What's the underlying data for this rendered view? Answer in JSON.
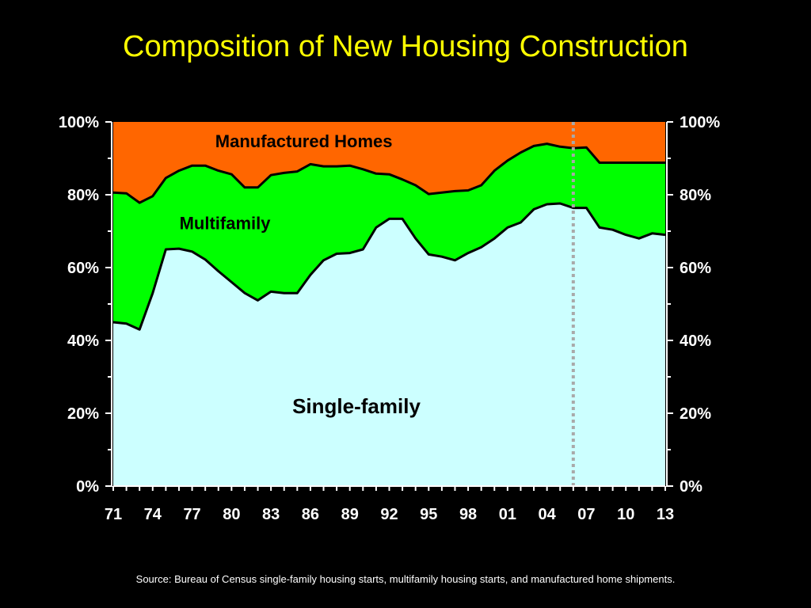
{
  "chart_data": {
    "type": "area",
    "title": "Composition of New Housing Construction",
    "source": "Source:  Bureau of Census single-family housing starts, multifamily housing starts, and manufactured home shipments.",
    "x": [
      1971,
      1972,
      1973,
      1974,
      1975,
      1976,
      1977,
      1978,
      1979,
      1980,
      1981,
      1982,
      1983,
      1984,
      1985,
      1986,
      1987,
      1988,
      1989,
      1990,
      1991,
      1992,
      1993,
      1994,
      1995,
      1996,
      1997,
      1998,
      1999,
      2000,
      2001,
      2002,
      2003,
      2004,
      2005,
      2006,
      2007,
      2008,
      2009,
      2010,
      2011,
      2012,
      2013
    ],
    "x_tick_labels": [
      "71",
      "74",
      "77",
      "80",
      "83",
      "86",
      "89",
      "92",
      "95",
      "98",
      "01",
      "04",
      "07",
      "10",
      "13"
    ],
    "x_tick_years": [
      1971,
      1974,
      1977,
      1980,
      1983,
      1986,
      1989,
      1992,
      1995,
      1998,
      2001,
      2004,
      2007,
      2010,
      2013
    ],
    "y_tick_labels": [
      "0%",
      "20%",
      "40%",
      "60%",
      "80%",
      "100%"
    ],
    "ylim": [
      0,
      100
    ],
    "series": [
      {
        "name": "Single-family",
        "color": "#ccffff",
        "values": [
          45,
          44.6,
          43,
          53,
          65,
          65.2,
          64.4,
          62.2,
          59,
          56,
          53,
          51,
          53.4,
          53,
          53,
          58,
          62,
          63.8,
          64,
          65,
          71,
          73.4,
          73.4,
          68,
          63.6,
          63,
          62,
          64,
          65.6,
          68,
          71,
          72.4,
          76,
          77.4,
          77.6,
          76.4,
          76.4,
          71,
          70.4,
          69,
          68,
          69.4,
          69
        ],
        "label": "Single-family"
      },
      {
        "name": "Multifamily",
        "color": "#00ff00",
        "values": [
          35.6,
          35.8,
          34.8,
          26.6,
          19.6,
          21.4,
          23.6,
          25.8,
          27.6,
          29.6,
          29,
          31,
          32,
          33,
          33.4,
          30.4,
          25.8,
          24,
          24,
          22,
          14.8,
          12.2,
          10.8,
          14.6,
          16.6,
          17.6,
          19,
          17.2,
          17,
          18.6,
          18.4,
          19.2,
          17.4,
          16.6,
          15.6,
          16.4,
          16.6,
          17.8,
          18.4,
          19.8,
          20.8,
          19.4,
          19.8
        ],
        "label": "Multifamily"
      },
      {
        "name": "Manufactured Homes",
        "color": "#ff6600",
        "values": [
          19.4,
          19.6,
          22.2,
          20.4,
          15.4,
          13.4,
          12,
          12,
          13.4,
          14.4,
          18,
          18,
          14.6,
          14,
          13.6,
          11.6,
          12.2,
          12.2,
          12,
          13,
          14.2,
          14.4,
          15.8,
          17.4,
          19.8,
          19.4,
          19,
          18.8,
          17.4,
          13.4,
          10.6,
          8.4,
          6.6,
          6,
          6.8,
          7.2,
          7,
          11.2,
          11.2,
          11.2,
          11.2,
          11.2,
          11.2
        ],
        "label": "Manufactured Homes"
      }
    ],
    "vertical_marker_year": 2006,
    "marker_color": "#a9a9a9"
  }
}
